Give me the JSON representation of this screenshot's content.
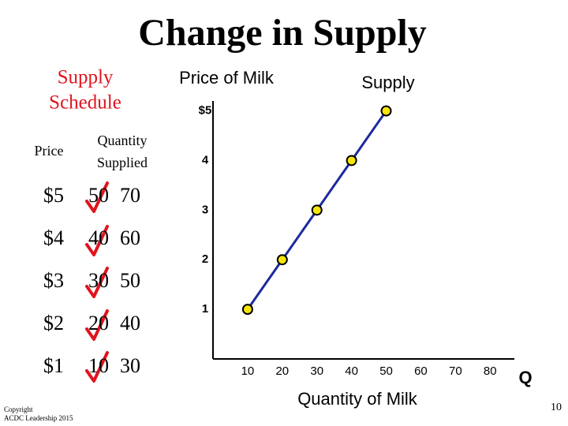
{
  "slide": {
    "title": "Change in Supply",
    "schedule_title": [
      "Supply",
      "Schedule"
    ],
    "table": {
      "header_price": "Price",
      "header_quantity": [
        "Quantity",
        "Supplied"
      ],
      "rows": [
        [
          "$5",
          "50",
          "70"
        ],
        [
          "$4",
          "40",
          "60"
        ],
        [
          "$3",
          "30",
          "50"
        ],
        [
          "$2",
          "20",
          "40"
        ],
        [
          "$1",
          "10",
          "30"
        ]
      ]
    },
    "copyright": [
      "Copyright",
      "ACDC Leadership 2015"
    ],
    "page_number": "10"
  },
  "chart_data": {
    "type": "line",
    "y_label": "Price of Milk",
    "x_label": "Quantity of Milk",
    "x_axis_symbol": "Q",
    "x": [
      10,
      20,
      30,
      40,
      50
    ],
    "series": [
      {
        "name": "Supply",
        "color": "#1c2a9c",
        "marker_color": "#f5e50a",
        "values": [
          1,
          2,
          3,
          4,
          5
        ]
      }
    ],
    "xlim": [
      0,
      87
    ],
    "ylim": [
      0,
      5.2
    ],
    "xticks": [
      10,
      20,
      30,
      40,
      50,
      60,
      70,
      80
    ],
    "yticks": [
      1,
      2,
      3,
      4,
      {
        "value": 5,
        "label": "$5"
      }
    ]
  }
}
